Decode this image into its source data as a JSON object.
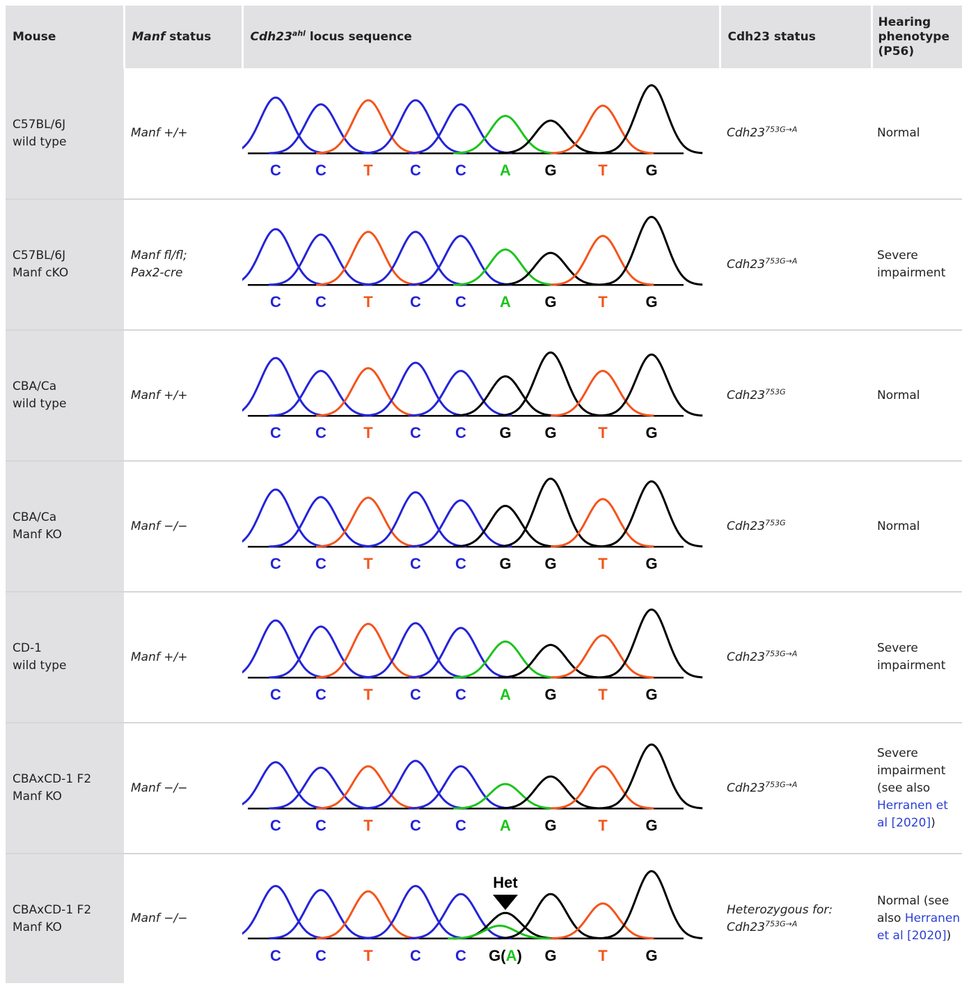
{
  "header": {
    "mouse": "Mouse",
    "manf_italic": "Manf",
    "manf_rest": " status",
    "seq_gene": "Cdh23",
    "seq_sup": "ahl",
    "seq_rest": " locus sequence",
    "cdh_status": "Cdh23 status",
    "hearing": "Hearing phenotype (P56)"
  },
  "colors": {
    "C": "#2424d8",
    "T": "#f4541c",
    "A": "#1cc41c",
    "G": "#000000",
    "header_bg": "#e1e1e3",
    "link": "#2c3fd6"
  },
  "rows": [
    {
      "mouse1": "C57BL/6J",
      "mouse2": "wild type",
      "manf1": "Manf +/+",
      "manf2": "",
      "cdh_prefix": "",
      "cdh_base": "Cdh23",
      "cdh_sup": "753G→A",
      "hear": "Normal",
      "hear_link": "",
      "hear_end": "",
      "bases": [
        "C",
        "C",
        "T",
        "C",
        "C",
        "A",
        "G",
        "T",
        "G"
      ],
      "peaks": [
        0.82,
        0.72,
        0.78,
        0.78,
        0.72,
        0.55,
        0.48,
        0.7,
        1.0
      ],
      "het": ""
    },
    {
      "mouse1": "C57BL/6J",
      "mouse2": "Manf cKO",
      "manf1": "Manf fl/fl;",
      "manf2": "Pax2-cre",
      "cdh_prefix": "",
      "cdh_base": "Cdh23",
      "cdh_sup": "753G→A",
      "hear": "Severe impairment",
      "hear_link": "",
      "hear_end": "",
      "bases": [
        "C",
        "C",
        "T",
        "C",
        "C",
        "A",
        "G",
        "T",
        "G"
      ],
      "peaks": [
        0.82,
        0.74,
        0.78,
        0.78,
        0.72,
        0.52,
        0.47,
        0.72,
        1.0
      ],
      "het": ""
    },
    {
      "mouse1": "CBA/Ca",
      "mouse2": "wild type",
      "manf1": "Manf +/+",
      "manf2": "",
      "cdh_prefix": "",
      "cdh_base": "Cdh23",
      "cdh_sup": "753G",
      "hear": "Normal",
      "hear_link": "",
      "hear_end": "",
      "bases": [
        "C",
        "C",
        "T",
        "C",
        "C",
        "G",
        "G",
        "T",
        "G"
      ],
      "peaks": [
        0.85,
        0.66,
        0.7,
        0.78,
        0.66,
        0.58,
        0.93,
        0.66,
        0.9
      ],
      "het": ""
    },
    {
      "mouse1": "CBA/Ca",
      "mouse2": "Manf KO",
      "manf1": "Manf −/−",
      "manf2": "",
      "cdh_prefix": "",
      "cdh_base": "Cdh23",
      "cdh_sup": "753G",
      "hear": "Normal",
      "hear_link": "",
      "hear_end": "",
      "bases": [
        "C",
        "C",
        "T",
        "C",
        "C",
        "G",
        "G",
        "T",
        "G"
      ],
      "peaks": [
        0.84,
        0.73,
        0.72,
        0.8,
        0.68,
        0.6,
        1.0,
        0.7,
        0.96
      ],
      "het": ""
    },
    {
      "mouse1": "CD-1",
      "mouse2": "wild type",
      "manf1": "Manf +/+",
      "manf2": "",
      "cdh_prefix": "",
      "cdh_base": "Cdh23",
      "cdh_sup": "753G→A",
      "hear": "Severe impairment",
      "hear_link": "",
      "hear_end": "",
      "bases": [
        "C",
        "C",
        "T",
        "C",
        "C",
        "A",
        "G",
        "T",
        "G"
      ],
      "peaks": [
        0.84,
        0.75,
        0.79,
        0.8,
        0.73,
        0.53,
        0.48,
        0.62,
        1.0
      ],
      "het": ""
    },
    {
      "mouse1": "CBAxCD-1 F2",
      "mouse2": "Manf KO",
      "manf1": "Manf −/−",
      "manf2": "",
      "cdh_prefix": "",
      "cdh_base": "Cdh23",
      "cdh_sup": "753G→A",
      "hear": "Severe impairment (see also",
      "hear_link": "Herranen et al [2020]",
      "hear_end": ")",
      "bases": [
        "C",
        "C",
        "T",
        "C",
        "C",
        "A",
        "G",
        "T",
        "G"
      ],
      "peaks": [
        0.68,
        0.6,
        0.62,
        0.7,
        0.62,
        0.36,
        0.47,
        0.62,
        0.94
      ],
      "het": ""
    },
    {
      "mouse1": "CBAxCD-1 F2",
      "mouse2": "Manf KO",
      "manf1": "Manf −/−",
      "manf2": "",
      "cdh_prefix": "Heterozygous for:",
      "cdh_base": "Cdh23",
      "cdh_sup": "753G→A",
      "hear": "Normal (see also",
      "hear_link": "Herranen et al [2020]",
      "hear_end": ")",
      "bases": [
        "C",
        "C",
        "T",
        "C",
        "C",
        "G(A)",
        "G",
        "T",
        "G"
      ],
      "peaks": [
        0.78,
        0.72,
        0.7,
        0.78,
        0.66,
        0.38,
        0.66,
        0.52,
        1.0
      ],
      "het": "Het"
    }
  ]
}
